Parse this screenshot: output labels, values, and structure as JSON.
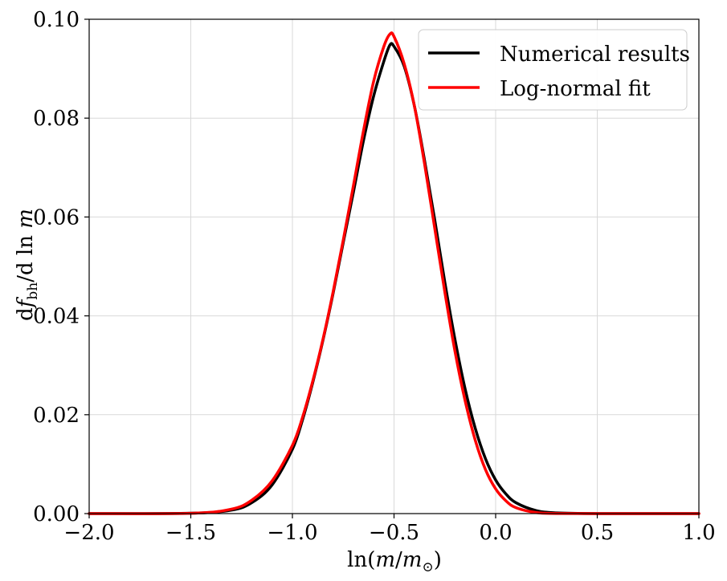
{
  "chart_data": {
    "type": "line",
    "title": "",
    "xlabel": "ln(m/m⊙)",
    "ylabel": "dfbh/dlnm",
    "xlabel_parts": {
      "prefix": "ln(",
      "var1": "m",
      "slash": "/",
      "var2": "m",
      "sub": "⊙",
      "suffix": ")"
    },
    "ylabel_parts": {
      "d1": "d",
      "f": "f",
      "sub": "bh",
      "rest": "/d ln ",
      "m": "m"
    },
    "xlim": [
      -2.0,
      1.0
    ],
    "ylim": [
      0.0,
      0.1
    ],
    "xticks": [
      -2.0,
      -1.5,
      -1.0,
      -0.5,
      0.0,
      0.5,
      1.0
    ],
    "xtick_labels": [
      "−2.0",
      "−1.5",
      "−1.0",
      "−0.5",
      "0.0",
      "0.5",
      "1.0"
    ],
    "yticks": [
      0.0,
      0.02,
      0.04,
      0.06,
      0.08,
      0.1
    ],
    "ytick_labels": [
      "0.00",
      "0.02",
      "0.04",
      "0.06",
      "0.08",
      "0.10"
    ],
    "grid": true,
    "legend_position": "top-right",
    "series": [
      {
        "name": "Numerical results",
        "color": "#000000",
        "x": [
          -2.0,
          -1.5,
          -1.3,
          -1.2,
          -1.1,
          -1.0,
          -0.95,
          -0.9,
          -0.85,
          -0.8,
          -0.75,
          -0.7,
          -0.65,
          -0.6,
          -0.55,
          -0.52,
          -0.5,
          -0.45,
          -0.4,
          -0.35,
          -0.3,
          -0.25,
          -0.2,
          -0.15,
          -0.1,
          -0.05,
          0.0,
          0.05,
          0.1,
          0.2,
          0.3,
          0.5,
          1.0
        ],
        "y": [
          0.0,
          8e-05,
          0.0007,
          0.0022,
          0.0058,
          0.013,
          0.019,
          0.0265,
          0.035,
          0.0445,
          0.0548,
          0.065,
          0.0755,
          0.0845,
          0.0915,
          0.0948,
          0.0945,
          0.0905,
          0.0825,
          0.0715,
          0.0595,
          0.0468,
          0.0352,
          0.0252,
          0.0172,
          0.0111,
          0.0068,
          0.004,
          0.0022,
          0.0006,
          0.00015,
          1e-05,
          0.0
        ]
      },
      {
        "name": "Log-normal fit",
        "color": "#ff0000",
        "x": [
          -2.0,
          -1.5,
          -1.3,
          -1.2,
          -1.1,
          -1.0,
          -0.95,
          -0.9,
          -0.85,
          -0.8,
          -0.75,
          -0.7,
          -0.65,
          -0.6,
          -0.55,
          -0.52,
          -0.5,
          -0.45,
          -0.4,
          -0.35,
          -0.3,
          -0.25,
          -0.2,
          -0.15,
          -0.1,
          -0.05,
          0.0,
          0.05,
          0.1,
          0.2,
          0.3,
          0.5,
          1.0
        ],
        "y": [
          0.0,
          6e-05,
          0.0009,
          0.0027,
          0.0066,
          0.0138,
          0.0195,
          0.0268,
          0.0352,
          0.0448,
          0.0553,
          0.0663,
          0.0775,
          0.0875,
          0.0945,
          0.097,
          0.0965,
          0.091,
          0.0825,
          0.0708,
          0.0578,
          0.0448,
          0.0328,
          0.0228,
          0.0148,
          0.0089,
          0.005,
          0.0026,
          0.0012,
          0.0002,
          3e-05,
          0.0,
          0.0
        ]
      }
    ]
  }
}
